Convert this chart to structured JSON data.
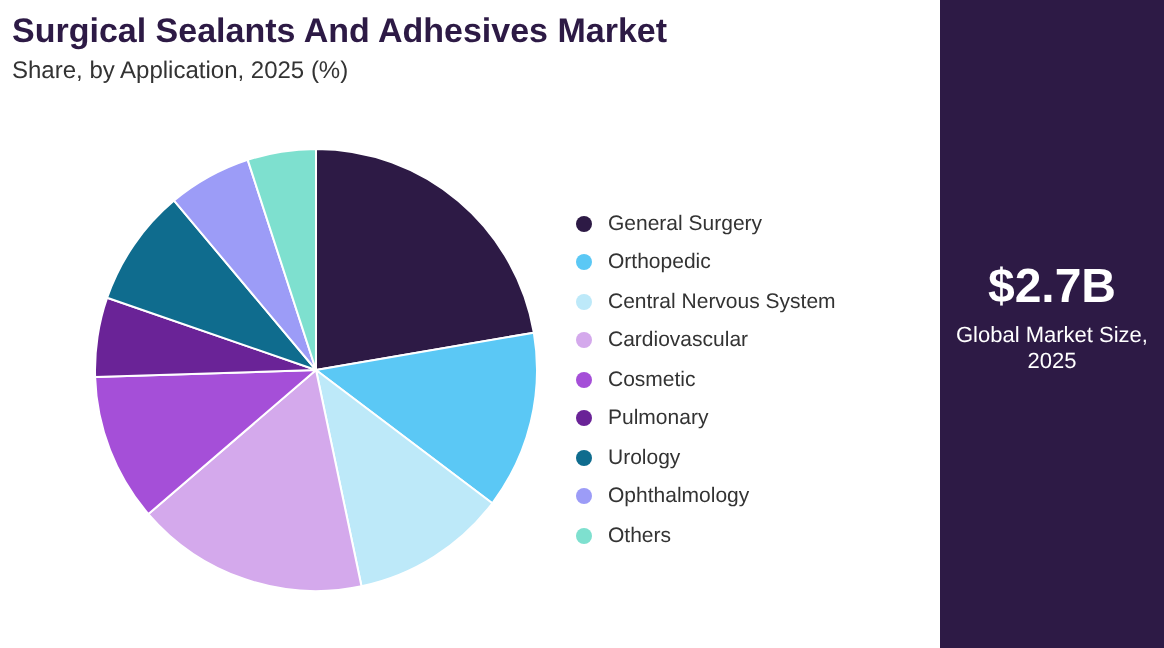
{
  "chart_data": {
    "type": "pie",
    "title": "Surgical Sealants And Adhesives Market",
    "subtitle": "Share, by Application, 2025 (%)",
    "categories": [
      "General Surgery",
      "Orthopedic",
      "Central Nervous System",
      "Cardiovascular",
      "Cosmetic",
      "Pulmonary",
      "Urology",
      "Ophthalmology",
      "Others"
    ],
    "values": [
      22.3,
      13,
      11.4,
      17,
      10.8,
      5.8,
      8.6,
      6.1,
      5
    ],
    "colors": [
      "#2d1a45",
      "#5bc8f5",
      "#bde9f9",
      "#d4a9ec",
      "#a54fd8",
      "#6a2397",
      "#0f6c8e",
      "#9c9cf7",
      "#7ee0cf"
    ],
    "legend": "right",
    "annotations": [
      "$2.7B",
      "Global Market Size, 2025"
    ]
  }
}
